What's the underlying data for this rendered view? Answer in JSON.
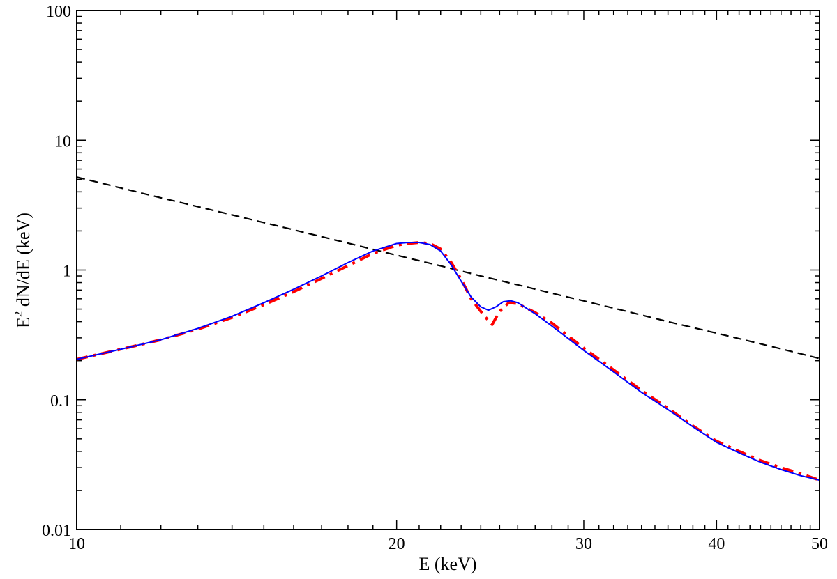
{
  "chart_data": {
    "type": "line",
    "title": "",
    "xlabel": "E (keV)",
    "ylabel": {
      "prefix": "E",
      "superscript": "2",
      "suffix": " dN/dE (keV)"
    },
    "x_scale": "log",
    "y_scale": "log",
    "xlim": [
      10,
      50
    ],
    "ylim": [
      0.01,
      100
    ],
    "x_ticks": [
      {
        "value": 10,
        "label": "10"
      },
      {
        "value": 20,
        "label": "20"
      },
      {
        "value": 30,
        "label": "30"
      },
      {
        "value": 40,
        "label": "40"
      },
      {
        "value": 50,
        "label": "50"
      }
    ],
    "y_ticks": [
      {
        "value": 0.01,
        "label": "0.01"
      },
      {
        "value": 0.1,
        "label": "0.1"
      },
      {
        "value": 1,
        "label": "1"
      },
      {
        "value": 10,
        "label": "10"
      },
      {
        "value": 100,
        "label": "100"
      }
    ],
    "grid": false,
    "legend": "none",
    "series": [
      {
        "color": "#000000",
        "style": "dashed",
        "x": [
          10,
          12,
          14,
          16,
          18,
          20,
          22,
          24,
          26,
          28,
          30,
          33,
          36,
          40,
          45,
          50
        ],
        "y": [
          26,
          18.0,
          13.3,
          10.2,
          8.05,
          6.5,
          5.38,
          4.5,
          3.84,
          3.31,
          2.89,
          2.39,
          2.0,
          1.63,
          1.29,
          1.04
        ],
        "y_scale_factor": 0.2
      },
      {
        "color": "#ff0000",
        "style": "dash-dot",
        "x": [
          10,
          11,
          12,
          13,
          14,
          15,
          16,
          17,
          18,
          19,
          20,
          20.5,
          21,
          21.5,
          22,
          22.5,
          23,
          23.5,
          24.2,
          24.6,
          25,
          25.5,
          26,
          27,
          28,
          30,
          32,
          34,
          36,
          38,
          40,
          42,
          44,
          46,
          48,
          50
        ],
        "y": [
          0.205,
          0.245,
          0.29,
          0.35,
          0.43,
          0.54,
          0.68,
          0.86,
          1.08,
          1.34,
          1.55,
          1.6,
          1.63,
          1.6,
          1.45,
          1.15,
          0.85,
          0.6,
          0.44,
          0.38,
          0.48,
          0.56,
          0.55,
          0.47,
          0.39,
          0.25,
          0.17,
          0.118,
          0.086,
          0.063,
          0.048,
          0.04,
          0.034,
          0.03,
          0.027,
          0.024
        ]
      },
      {
        "color": "#0000ff",
        "style": "solid",
        "x": [
          10,
          11,
          12,
          13,
          14,
          15,
          16,
          17,
          18,
          19,
          20,
          20.5,
          21,
          21.5,
          22,
          22.5,
          23,
          23.5,
          24.0,
          24.4,
          24.8,
          25.2,
          25.6,
          26,
          27,
          28,
          30,
          32,
          34,
          36,
          38,
          40,
          42,
          44,
          46,
          48,
          50
        ],
        "y": [
          0.205,
          0.245,
          0.29,
          0.355,
          0.44,
          0.56,
          0.71,
          0.9,
          1.14,
          1.4,
          1.6,
          1.63,
          1.63,
          1.57,
          1.4,
          1.1,
          0.82,
          0.62,
          0.52,
          0.49,
          0.52,
          0.57,
          0.58,
          0.56,
          0.46,
          0.37,
          0.24,
          0.164,
          0.114,
          0.084,
          0.062,
          0.047,
          0.039,
          0.033,
          0.029,
          0.026,
          0.024
        ]
      }
    ]
  }
}
